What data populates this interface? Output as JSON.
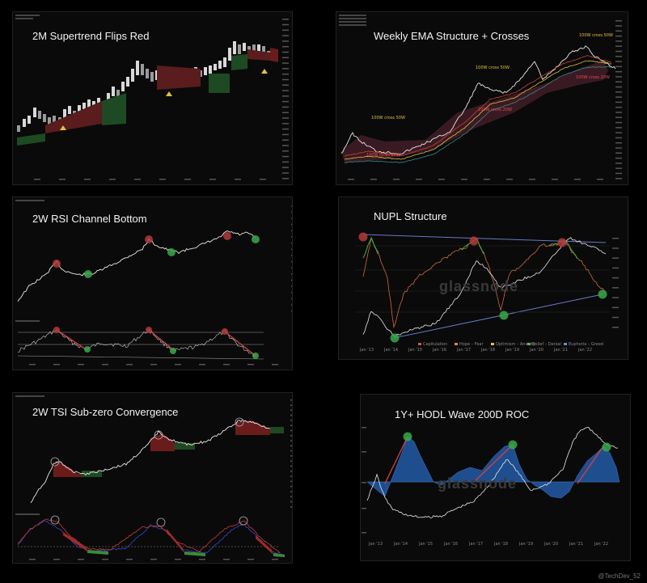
{
  "panels": [
    {
      "title": "2M Supertrend Flips Red"
    },
    {
      "title": "Weekly EMA Structure + Crosses"
    },
    {
      "title": "2W RSI Channel Bottom"
    },
    {
      "title": "NUPL  Structure"
    },
    {
      "title": "2W TSI Sub-zero Convergence"
    },
    {
      "title": "1Y+ HODL Wave 200D ROC"
    }
  ],
  "watermarks": {
    "nupl": "glassnode",
    "hodl": "glassnode"
  },
  "annotations": {
    "ema_cross_1": "100W cross 50W",
    "ema_cross_2": "100W cross 20W",
    "ema_cross_3": "100W cross 50W",
    "ema_cross_4": "100W cross 20W",
    "ema_cross_5": "100W cross 50W",
    "ema_cross_6": "100W cross 20W"
  },
  "nupl_legend": [
    "Capitulation",
    "Hope – Fear",
    "Optimism – Anxiety",
    "Belief – Denial",
    "Euphoria – Greed"
  ],
  "nupl_legend_colors": [
    "#d9534f",
    "#e8804a",
    "#d9c94a",
    "#5cb85c",
    "#5b8fd9"
  ],
  "nupl_xticks": [
    "Jan '13",
    "Jan '14",
    "Jan '15",
    "Jan '16",
    "Jan '17",
    "Jan '18",
    "Jan '19",
    "Jan '20",
    "Jan '21",
    "Jan '22"
  ],
  "hodl_xticks": [
    "Jan '13",
    "Jan '14",
    "Jan '15",
    "Jan '16",
    "Jan '17",
    "Jan '18",
    "Jan '19",
    "Jan '20",
    "Jan '21",
    "Jan '22"
  ],
  "credit": "@TechDev_52",
  "colors": {
    "red": "#b33a3a",
    "green": "#3aa84a",
    "blue": "#2f6db5",
    "white": "#e8e8e8"
  }
}
